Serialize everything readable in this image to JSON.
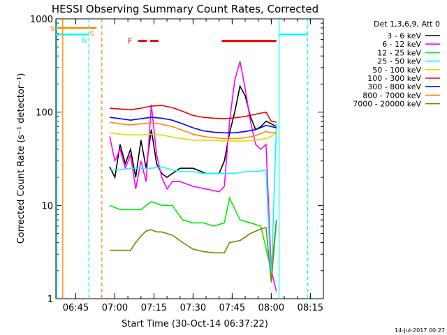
{
  "chart_data": {
    "type": "line",
    "title": "HESSI Observing Summary Count Rates, Corrected",
    "xlabel": "Start Time (30-Oct-14 06:37:22)",
    "ylabel": "Corrected Count Rate (s⁻¹ detector⁻¹)",
    "yscale": "log",
    "ylim": [
      1,
      1000
    ],
    "xlim": [
      "06:37:22",
      "08:20:00"
    ],
    "x_ticks": [
      "06:45",
      "07:00",
      "07:15",
      "07:30",
      "07:45",
      "08:00",
      "08:15"
    ],
    "y_ticks": [
      "1",
      "10",
      "100",
      "1000"
    ],
    "legend_title": "Det 1,3,6,9, Att 0",
    "legend_position": "right",
    "footer_date": "14-Jul-2017 00:27",
    "annotations": {
      "S_label": "S",
      "N_label": "N",
      "F_label": "F"
    },
    "series": [
      {
        "name": "3 - 6 keV",
        "color": "#000000",
        "x": [
          "06:58",
          "07:00",
          "07:02",
          "07:04",
          "07:06",
          "07:08",
          "07:10",
          "07:12",
          "07:14",
          "07:16",
          "07:18",
          "07:20",
          "07:22",
          "07:25",
          "07:30",
          "07:35",
          "07:40",
          "07:42",
          "07:44",
          "07:46",
          "07:48",
          "07:50",
          "07:52",
          "07:54",
          "07:56",
          "07:58",
          "08:00",
          "08:02"
        ],
        "values": [
          26,
          20,
          45,
          28,
          40,
          20,
          50,
          25,
          65,
          28,
          22,
          20,
          22,
          25,
          25,
          22,
          22,
          30,
          60,
          100,
          190,
          150,
          90,
          65,
          70,
          80,
          75,
          70
        ]
      },
      {
        "name": "6 - 12 keV",
        "color": "#ff00ff",
        "x": [
          "06:58",
          "07:00",
          "07:02",
          "07:04",
          "07:06",
          "07:08",
          "07:10",
          "07:12",
          "07:14",
          "07:16",
          "07:18",
          "07:20",
          "07:22",
          "07:25",
          "07:30",
          "07:35",
          "07:40",
          "07:42",
          "07:44",
          "07:46",
          "07:48",
          "07:50",
          "07:52",
          "07:54",
          "07:56",
          "07:58",
          "08:00",
          "08:02"
        ],
        "values": [
          55,
          30,
          40,
          25,
          35,
          15,
          30,
          18,
          120,
          35,
          20,
          15,
          18,
          18,
          16,
          15,
          14,
          16,
          80,
          220,
          350,
          180,
          80,
          45,
          40,
          45,
          2,
          1.2
        ]
      },
      {
        "name": "12 - 25 keV",
        "color": "#00ee00",
        "x": [
          "06:58",
          "07:02",
          "07:06",
          "07:10",
          "07:14",
          "07:18",
          "07:22",
          "07:26",
          "07:30",
          "07:34",
          "07:38",
          "07:42",
          "07:44",
          "07:48",
          "07:52",
          "07:56",
          "08:00",
          "08:02"
        ],
        "values": [
          10,
          9,
          9,
          9,
          11,
          10,
          10,
          7,
          6.5,
          6.5,
          6,
          6.5,
          12,
          7,
          6.5,
          6,
          2,
          7
        ]
      },
      {
        "name": "25 - 50 keV",
        "color": "#00ffff",
        "x": [
          "06:58",
          "07:02",
          "07:06",
          "07:10",
          "07:14",
          "07:18",
          "07:22",
          "07:26",
          "07:30",
          "07:34",
          "07:38",
          "07:42",
          "07:46",
          "07:50",
          "07:54",
          "07:58",
          "08:00",
          "08:02"
        ],
        "values": [
          24,
          24,
          25,
          25,
          25,
          26,
          24,
          23,
          23,
          22,
          22,
          22,
          22,
          23,
          23,
          24,
          1.5,
          75
        ]
      },
      {
        "name": "50 - 100 keV",
        "color": "#dddd00",
        "x": [
          "06:58",
          "07:02",
          "07:06",
          "07:10",
          "07:14",
          "07:18",
          "07:22",
          "07:26",
          "07:30",
          "07:34",
          "07:38",
          "07:42",
          "07:46",
          "07:50",
          "07:54",
          "07:58",
          "08:00",
          "08:02"
        ],
        "values": [
          60,
          58,
          57,
          57,
          58,
          57,
          54,
          52,
          50,
          50,
          50,
          49,
          49,
          49,
          50,
          52,
          55,
          60
        ]
      },
      {
        "name": "100 - 300 keV",
        "color": "#ee0000",
        "x": [
          "06:58",
          "07:02",
          "07:06",
          "07:10",
          "07:14",
          "07:18",
          "07:22",
          "07:26",
          "07:30",
          "07:34",
          "07:38",
          "07:42",
          "07:46",
          "07:50",
          "07:54",
          "07:58",
          "08:00",
          "08:02"
        ],
        "values": [
          110,
          108,
          106,
          110,
          116,
          118,
          112,
          102,
          92,
          88,
          86,
          85,
          87,
          90,
          95,
          100,
          80,
          78
        ]
      },
      {
        "name": "300 - 800 keV",
        "color": "#0000ff",
        "x": [
          "06:58",
          "07:02",
          "07:06",
          "07:10",
          "07:14",
          "07:18",
          "07:22",
          "07:26",
          "07:30",
          "07:34",
          "07:38",
          "07:42",
          "07:46",
          "07:50",
          "07:54",
          "07:58",
          "08:00",
          "08:02"
        ],
        "values": [
          88,
          85,
          82,
          85,
          88,
          86,
          82,
          75,
          68,
          63,
          61,
          60,
          60,
          62,
          65,
          72,
          70,
          68
        ]
      },
      {
        "name": "800 - 7000 keV",
        "color": "#ff8800",
        "x": [
          "06:58",
          "07:02",
          "07:06",
          "07:10",
          "07:14",
          "07:18",
          "07:22",
          "07:26",
          "07:30",
          "07:34",
          "07:38",
          "07:42",
          "07:46",
          "07:50",
          "07:54",
          "07:58",
          "08:00",
          "08:02"
        ],
        "values": [
          78,
          75,
          73,
          75,
          77,
          74,
          70,
          64,
          58,
          55,
          53,
          52,
          52,
          53,
          56,
          62,
          60,
          60
        ]
      },
      {
        "name": "7000 - 20000 keV",
        "color": "#808000",
        "x": [
          "06:58",
          "07:02",
          "07:06",
          "07:08",
          "07:10",
          "07:12",
          "07:14",
          "07:16",
          "07:18",
          "07:22",
          "07:26",
          "07:30",
          "07:34",
          "07:38",
          "07:42",
          "07:44",
          "07:48",
          "07:52",
          "07:56",
          "07:58",
          "08:00",
          "08:02"
        ],
        "values": [
          3.3,
          3.3,
          3.3,
          4,
          4.7,
          5.3,
          5.5,
          5.2,
          5.2,
          4.8,
          4,
          3.4,
          3.2,
          3.1,
          3.1,
          4,
          4.2,
          5,
          5.6,
          5.8,
          1.5,
          7
        ]
      }
    ],
    "overlays": [
      {
        "kind": "segment",
        "color": "#ff8800",
        "label_key": "S_label",
        "x": [
          "06:37:22",
          "06:53"
        ],
        "y": 800
      },
      {
        "kind": "segment",
        "color": "#00ffff",
        "label_key": "N_label",
        "x": [
          "06:37:22",
          "06:50"
        ],
        "y": 680
      },
      {
        "kind": "vline",
        "color": "#ff8800",
        "x": "06:40",
        "dash": false
      },
      {
        "kind": "vline",
        "color": "#00ffff",
        "x": "06:37:40",
        "dash": false
      },
      {
        "kind": "vline",
        "color": "#00ffff",
        "x": "06:50",
        "dash": true
      },
      {
        "kind": "vline",
        "color": "#ff8800",
        "x": "06:55",
        "dash": true
      },
      {
        "kind": "vline",
        "color": "#00ffff",
        "x": "08:03",
        "dash": false
      },
      {
        "kind": "vline",
        "color": "#00ffff",
        "x": "08:14",
        "dash": true
      },
      {
        "kind": "segment",
        "color": "#00ffff",
        "x": [
          "08:03",
          "08:14"
        ],
        "y": 680
      },
      {
        "kind": "flare",
        "color": "#ee0000",
        "label_key": "F_label",
        "x": [
          "07:09",
          "07:17"
        ],
        "y": 580
      },
      {
        "kind": "flare",
        "color": "#ee0000",
        "x": [
          "07:41",
          "08:02"
        ],
        "y": 580,
        "solid": true
      }
    ]
  }
}
